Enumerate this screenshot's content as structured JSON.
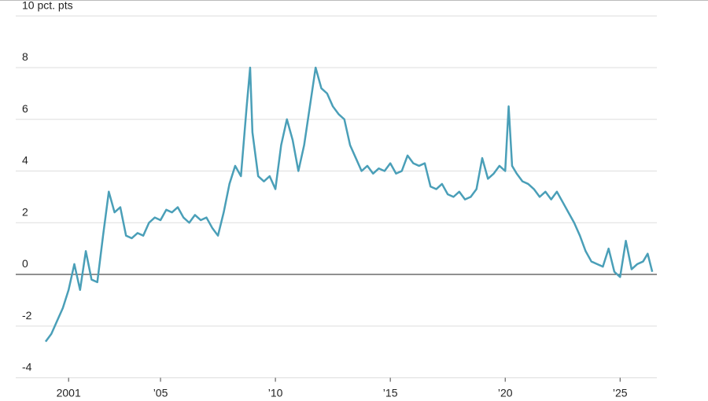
{
  "chart_data": {
    "type": "line",
    "x": [
      2000.0,
      2000.25,
      2000.5,
      2000.75,
      2001.0,
      2001.25,
      2001.5,
      2001.75,
      2002.0,
      2002.25,
      2002.5,
      2002.75,
      2003.0,
      2003.25,
      2003.5,
      2003.75,
      2004.0,
      2004.25,
      2004.5,
      2004.75,
      2005.0,
      2005.25,
      2005.5,
      2005.75,
      2006.0,
      2006.25,
      2006.5,
      2006.75,
      2007.0,
      2007.25,
      2007.5,
      2007.75,
      2008.0,
      2008.25,
      2008.5,
      2008.75,
      2008.9,
      2009.0,
      2009.25,
      2009.5,
      2009.75,
      2010.0,
      2010.25,
      2010.5,
      2010.75,
      2011.0,
      2011.25,
      2011.5,
      2011.75,
      2012.0,
      2012.25,
      2012.5,
      2012.75,
      2013.0,
      2013.25,
      2013.5,
      2013.75,
      2014.0,
      2014.25,
      2014.5,
      2014.75,
      2015.0,
      2015.25,
      2015.5,
      2015.75,
      2016.0,
      2016.25,
      2016.5,
      2016.75,
      2017.0,
      2017.25,
      2017.5,
      2017.75,
      2018.0,
      2018.25,
      2018.5,
      2018.75,
      2019.0,
      2019.25,
      2019.5,
      2019.75,
      2020.0,
      2020.15,
      2020.3,
      2020.5,
      2020.75,
      2021.0,
      2021.25,
      2021.5,
      2021.75,
      2022.0,
      2022.25,
      2022.5,
      2022.75,
      2023.0,
      2023.25,
      2023.5,
      2023.75,
      2024.0,
      2024.25,
      2024.5,
      2024.75,
      2025.0,
      2025.25,
      2025.5,
      2025.75,
      2026.0,
      2026.2,
      2026.4
    ],
    "series": [
      {
        "color": "#4a9fb8",
        "values": [
          -2.6,
          -2.3,
          -1.8,
          -1.3,
          -0.6,
          0.4,
          -0.6,
          0.9,
          -0.2,
          -0.3,
          1.5,
          3.2,
          2.4,
          2.6,
          1.5,
          1.4,
          1.6,
          1.5,
          2.0,
          2.2,
          2.1,
          2.5,
          2.4,
          2.6,
          2.2,
          2.0,
          2.3,
          2.1,
          2.2,
          1.8,
          1.5,
          2.4,
          3.5,
          4.2,
          3.8,
          6.5,
          8.0,
          5.5,
          3.8,
          3.6,
          3.8,
          3.3,
          5.0,
          6.0,
          5.2,
          4.0,
          5.0,
          6.5,
          8.0,
          7.2,
          7.0,
          6.5,
          6.2,
          6.0,
          5.0,
          4.5,
          4.0,
          4.2,
          3.9,
          4.1,
          4.0,
          4.3,
          3.9,
          4.0,
          4.6,
          4.3,
          4.2,
          4.3,
          3.4,
          3.3,
          3.5,
          3.1,
          3.0,
          3.2,
          2.9,
          3.0,
          3.3,
          4.5,
          3.7,
          3.9,
          4.2,
          4.0,
          6.5,
          4.2,
          3.9,
          3.6,
          3.5,
          3.3,
          3.0,
          3.2,
          2.9,
          3.2,
          2.8,
          2.4,
          2.0,
          1.5,
          0.9,
          0.5,
          0.4,
          0.3,
          1.0,
          0.1,
          -0.1,
          1.3,
          0.2,
          0.4,
          0.5,
          0.8,
          0.1
        ]
      }
    ],
    "xlim": [
      1998.7,
      2026.6
    ],
    "xticks": [
      2001,
      {
        "value": 2005,
        "label": "’05"
      },
      {
        "value": 2010,
        "label": "’10"
      },
      {
        "value": 2015,
        "label": "’15"
      },
      {
        "value": 2020,
        "label": "’20"
      },
      {
        "value": 2025,
        "label": "’25"
      }
    ],
    "ylim": [
      -4,
      10
    ],
    "yticks": [
      -4,
      -2,
      0,
      2,
      4,
      6,
      8,
      {
        "value": 10,
        "label": "10 pct. pts"
      }
    ],
    "grid": true
  }
}
